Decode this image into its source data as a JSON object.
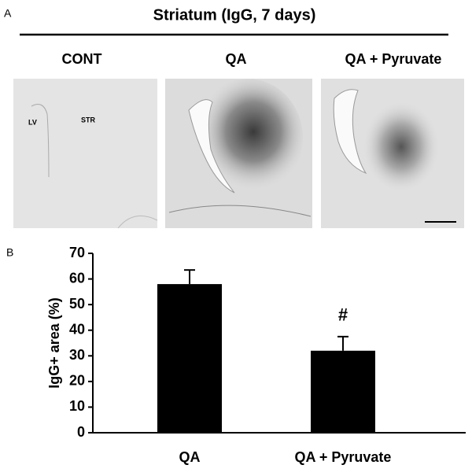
{
  "panel_a": {
    "label": "A",
    "title": "Striatum (IgG, 7 days)",
    "columns": [
      "CONT",
      "QA",
      "QA + Pyruvate"
    ],
    "image_labels": [
      "LV",
      "STR"
    ]
  },
  "panel_b": {
    "label": "B"
  },
  "chart_data": {
    "type": "bar",
    "ylabel": "IgG+ area (%)",
    "categories": [
      "QA",
      "QA + Pyruvate"
    ],
    "values": [
      58,
      32
    ],
    "errors": [
      5.5,
      5.5
    ],
    "color": "#000000",
    "ylim": [
      0,
      70
    ],
    "yticks": [
      0,
      10,
      20,
      30,
      40,
      50,
      60,
      70
    ],
    "annotations": [
      {
        "text": "#",
        "category": "QA + Pyruvate"
      }
    ]
  }
}
